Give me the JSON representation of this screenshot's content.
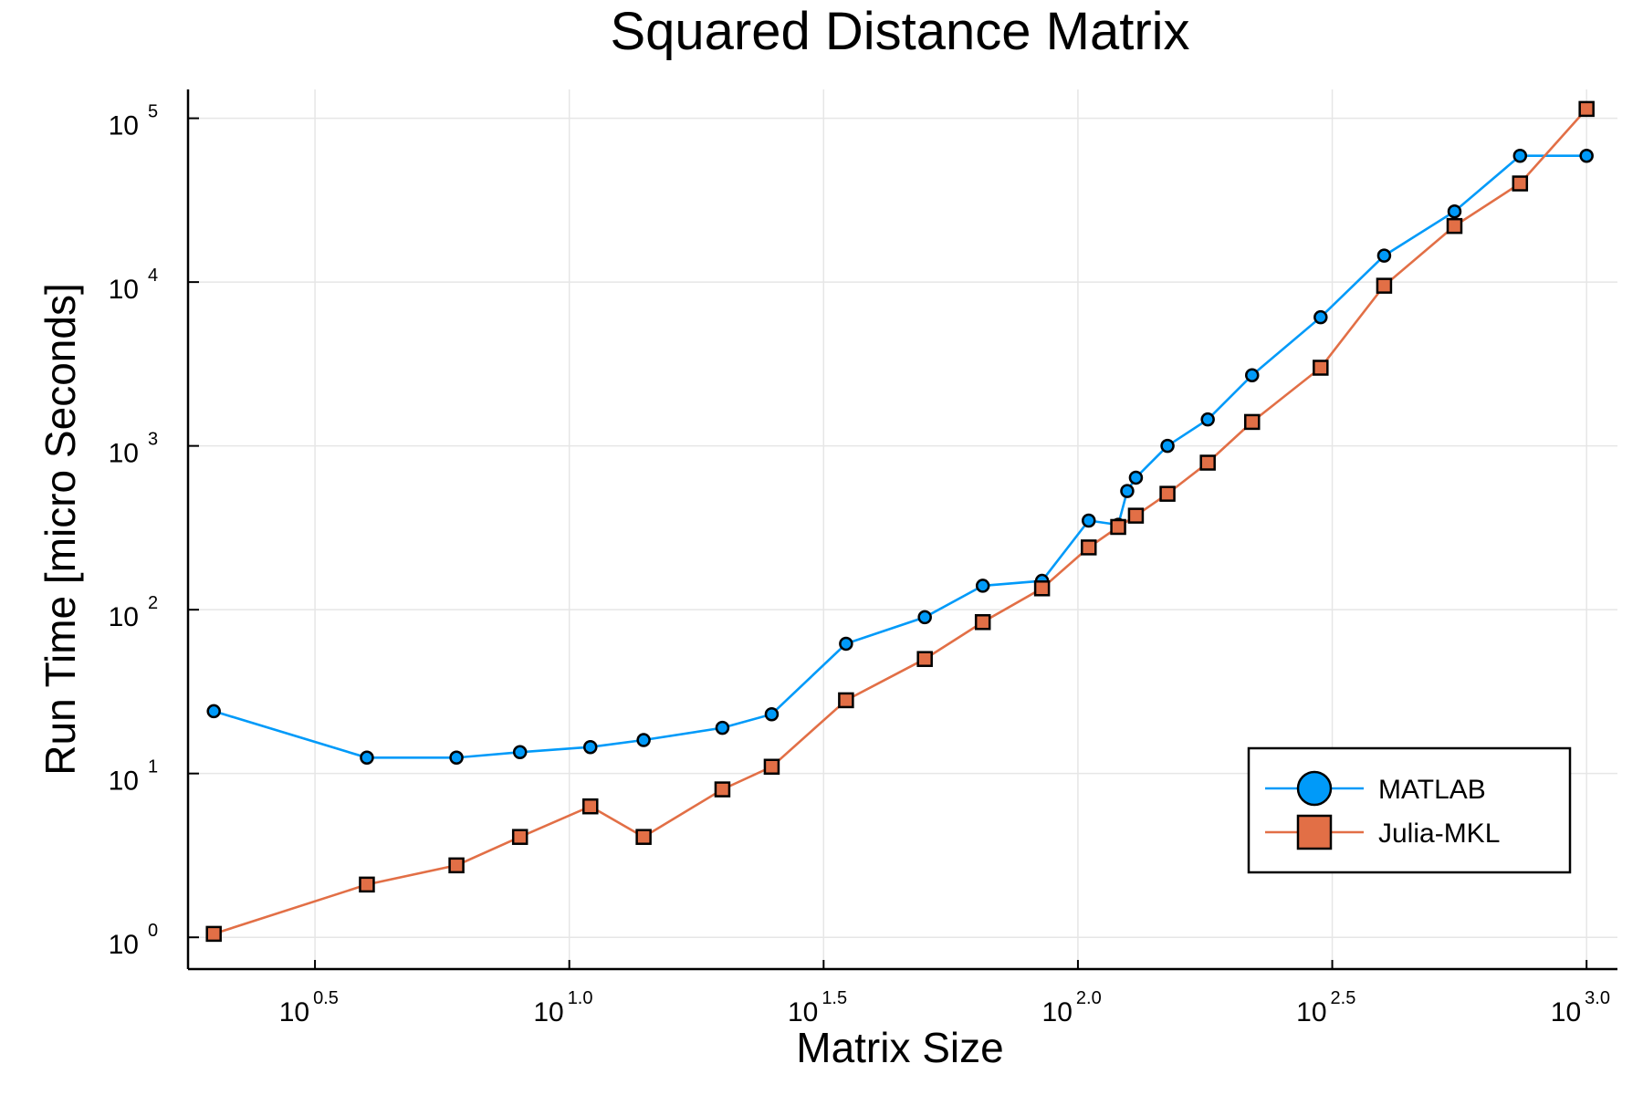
{
  "chart_data": {
    "type": "line",
    "title": "Squared Distance Matrix",
    "xlabel": "Matrix Size",
    "ylabel": "Run Time  [micro Seconds]",
    "xscale": "log10",
    "yscale": "log10",
    "xlim": [
      1.78,
      1150
    ],
    "ylim": [
      0.64,
      150000
    ],
    "grid": true,
    "legend_position": "bottom-right",
    "x_ticks": [
      {
        "base": "10",
        "exp": "0.5",
        "value": 3.1623
      },
      {
        "base": "10",
        "exp": "1.0",
        "value": 10
      },
      {
        "base": "10",
        "exp": "1.5",
        "value": 31.623
      },
      {
        "base": "10",
        "exp": "2.0",
        "value": 100
      },
      {
        "base": "10",
        "exp": "2.5",
        "value": 316.23
      },
      {
        "base": "10",
        "exp": "3.0",
        "value": 1000
      }
    ],
    "y_ticks": [
      {
        "base": "10",
        "exp": "0",
        "value": 1
      },
      {
        "base": "10",
        "exp": "1",
        "value": 10
      },
      {
        "base": "10",
        "exp": "2",
        "value": 100
      },
      {
        "base": "10",
        "exp": "3",
        "value": 1000
      },
      {
        "base": "10",
        "exp": "4",
        "value": 10000
      },
      {
        "base": "10",
        "exp": "5",
        "value": 100000
      }
    ],
    "series": [
      {
        "name": "MATLAB",
        "color": "#009af9",
        "marker": "circle",
        "x": [
          2,
          4,
          6,
          8,
          11,
          14,
          20,
          25,
          35,
          50,
          65,
          85,
          105,
          120,
          125,
          130,
          150,
          180,
          220,
          300,
          400,
          550,
          740,
          1000
        ],
        "y": [
          24,
          12.5,
          12.5,
          13.5,
          14.5,
          16,
          19,
          23,
          62,
          90,
          140,
          150,
          350,
          330,
          530,
          640,
          1000,
          1450,
          2700,
          6100,
          14500,
          27000,
          59000,
          59000
        ]
      },
      {
        "name": "Julia-MKL",
        "color": "#e26f46",
        "marker": "square",
        "x": [
          2,
          4,
          6,
          8,
          11,
          14,
          20,
          25,
          35,
          50,
          65,
          85,
          105,
          120,
          130,
          150,
          180,
          220,
          300,
          400,
          550,
          740,
          1000
        ],
        "y": [
          1.05,
          2.1,
          2.75,
          4.1,
          6.3,
          4.1,
          8,
          11,
          28,
          50,
          84,
          135,
          240,
          320,
          375,
          510,
          790,
          1400,
          3000,
          9500,
          22000,
          40000,
          114000
        ]
      }
    ]
  }
}
